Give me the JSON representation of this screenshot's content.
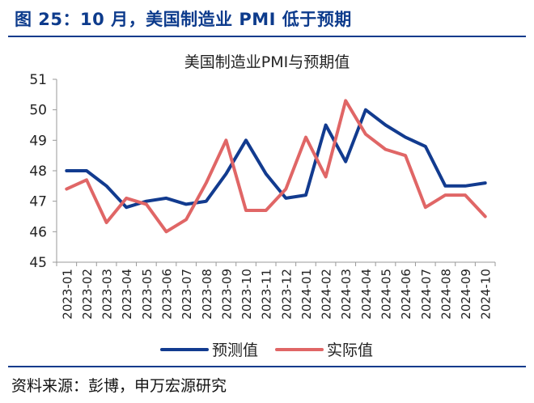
{
  "header": {
    "figure_title": "图 25：10 月，美国制造业 PMI 低于预期"
  },
  "footer": {
    "source": "资料来源：彭博，申万宏源研究"
  },
  "colors": {
    "title": "#0d3b8c",
    "expected": "#123b8f",
    "actual": "#e06666",
    "axis": "#999999"
  },
  "chart_data": {
    "type": "line",
    "title": "美国制造业PMI与预期值",
    "xlabel": "",
    "ylabel": "",
    "ylim": [
      45,
      51
    ],
    "yticks": [
      45,
      46,
      47,
      48,
      49,
      50,
      51
    ],
    "categories": [
      "2023-01",
      "2023-02",
      "2023-03",
      "2023-04",
      "2023-05",
      "2023-06",
      "2023-07",
      "2023-08",
      "2023-09",
      "2023-10",
      "2023-11",
      "2023-12",
      "2024-01",
      "2024-02",
      "2024-03",
      "2024-04",
      "2024-05",
      "2024-06",
      "2024-07",
      "2024-08",
      "2024-09",
      "2024-10"
    ],
    "series": [
      {
        "name": "预测值",
        "color": "#123b8f",
        "values": [
          48.0,
          48.0,
          47.5,
          46.8,
          47.0,
          47.1,
          46.9,
          47.0,
          47.9,
          49.0,
          47.9,
          47.1,
          47.2,
          49.5,
          48.3,
          50.0,
          49.5,
          49.1,
          48.8,
          47.5,
          47.5,
          47.6
        ]
      },
      {
        "name": "实际值",
        "color": "#e06666",
        "values": [
          47.4,
          47.7,
          46.3,
          47.1,
          46.9,
          46.0,
          46.4,
          47.6,
          49.0,
          46.7,
          46.7,
          47.4,
          49.1,
          47.8,
          50.3,
          49.2,
          48.7,
          48.5,
          46.8,
          47.2,
          47.2,
          46.5
        ]
      }
    ],
    "legend": "bottom-center",
    "grid": false
  }
}
